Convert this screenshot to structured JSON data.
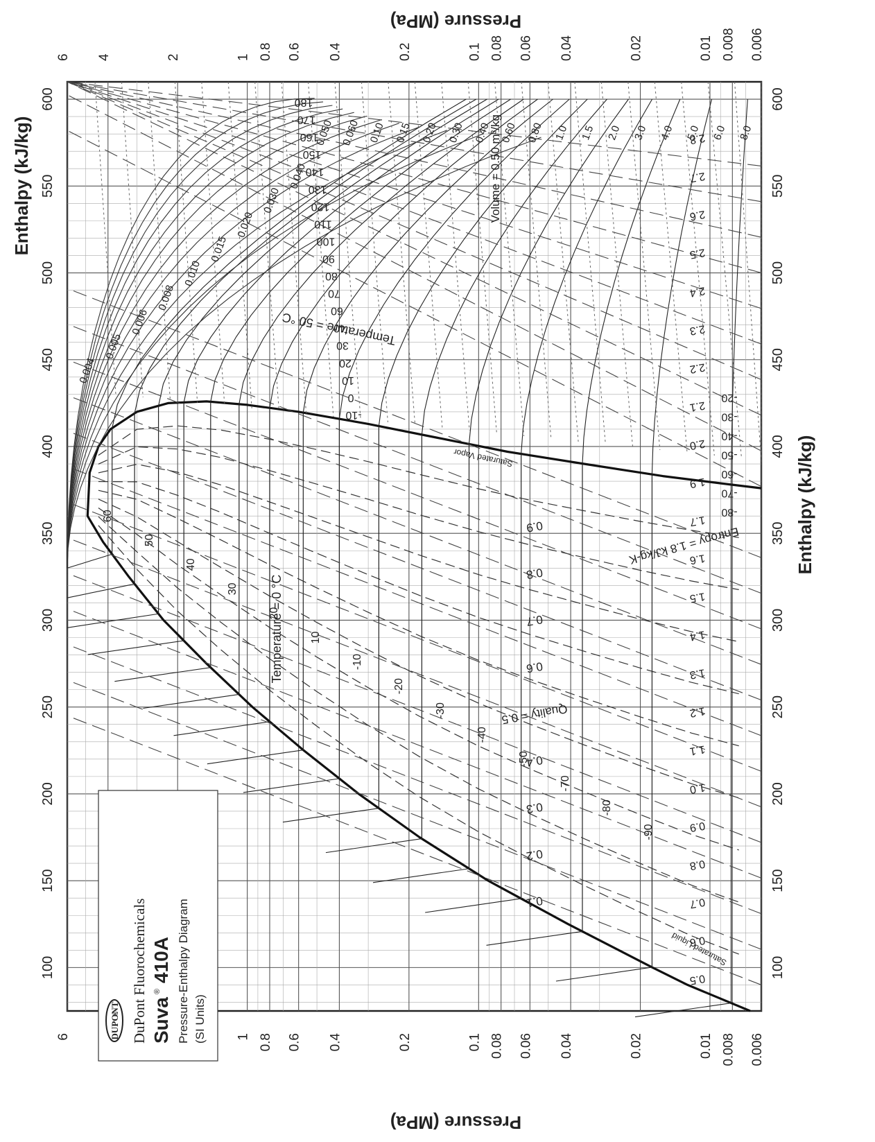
{
  "chart_data": {
    "type": "line",
    "title": "Pressure-Enthalpy Diagram",
    "subtitle": "(SI Units)",
    "xlabel": "Enthalpy (kJ/kg)",
    "ylabel": "Pressure (MPa)",
    "xlim": [
      75,
      610
    ],
    "ylim": [
      0.006,
      6
    ],
    "y_scale": "log",
    "orientation": "rotated-90-clockwise",
    "grid": true,
    "x_ticks": [
      100,
      150,
      200,
      250,
      300,
      350,
      400,
      450,
      500,
      550,
      600
    ],
    "y_ticks": [
      {
        "value": 6,
        "label": "6"
      },
      {
        "value": 4,
        "label": "4"
      },
      {
        "value": 2,
        "label": "2"
      },
      {
        "value": 1,
        "label": "1"
      },
      {
        "value": 0.8,
        "label": "0.8"
      },
      {
        "value": 0.6,
        "label": "0.6"
      },
      {
        "value": 0.4,
        "label": "0.4"
      },
      {
        "value": 0.2,
        "label": "0.2"
      },
      {
        "value": 0.1,
        "label": "0.1"
      },
      {
        "value": 0.08,
        "label": "0.08"
      },
      {
        "value": 0.06,
        "label": "0.06"
      },
      {
        "value": 0.04,
        "label": "0.04"
      },
      {
        "value": 0.02,
        "label": "0.02"
      },
      {
        "value": 0.01,
        "label": "0.01"
      },
      {
        "value": 0.008,
        "label": "0.008"
      },
      {
        "value": 0.006,
        "label": "0.006"
      }
    ],
    "legend": {
      "brand_logo": "DUPONT",
      "company": "DuPont Fluorochemicals",
      "product": "Suva",
      "product_code": "410A",
      "registered": "®",
      "diagram_name": "Pressure-Enthalpy Diagram",
      "units": "(SI Units)",
      "placement": "bottom-left"
    },
    "saturation_dome": {
      "liquid_label": "Saturated Liquid",
      "vapor_label": "Saturated Vapor",
      "critical_point": {
        "h": 360,
        "p": 4.9
      },
      "liquid": [
        {
          "h": 75,
          "p": 0.0067
        },
        {
          "h": 90,
          "p": 0.0125
        },
        {
          "h": 100,
          "p": 0.0177
        },
        {
          "h": 125,
          "p": 0.041
        },
        {
          "h": 150,
          "p": 0.091
        },
        {
          "h": 175,
          "p": 0.18
        },
        {
          "h": 200,
          "p": 0.33
        },
        {
          "h": 225,
          "p": 0.57
        },
        {
          "h": 250,
          "p": 0.95
        },
        {
          "h": 275,
          "p": 1.5
        },
        {
          "h": 300,
          "p": 2.3
        },
        {
          "h": 325,
          "p": 3.25
        },
        {
          "h": 345,
          "p": 4.2
        },
        {
          "h": 360,
          "p": 4.9
        }
      ],
      "vapor": [
        {
          "h": 360,
          "p": 4.9
        },
        {
          "h": 385,
          "p": 4.8
        },
        {
          "h": 400,
          "p": 4.4
        },
        {
          "h": 410,
          "p": 3.9
        },
        {
          "h": 420,
          "p": 3.0
        },
        {
          "h": 425,
          "p": 2.2
        },
        {
          "h": 426,
          "p": 1.5
        },
        {
          "h": 424,
          "p": 1.0
        },
        {
          "h": 420,
          "p": 0.6
        },
        {
          "h": 413,
          "p": 0.3
        },
        {
          "h": 405,
          "p": 0.15
        },
        {
          "h": 397,
          "p": 0.075
        },
        {
          "h": 390,
          "p": 0.035
        },
        {
          "h": 383,
          "p": 0.016
        },
        {
          "h": 378,
          "p": 0.008
        },
        {
          "h": 376,
          "p": 0.006
        }
      ]
    },
    "isotherms_label": "Temperature = 0 °C",
    "isotherms_superheat_label": "Temperature = 50 °C",
    "isotherms_unit_left": "Temperature = 0",
    "isotherms_unit_right": "°C",
    "isotherms": [
      -90,
      -80,
      -70,
      -60,
      -50,
      -40,
      -30,
      -20,
      -10,
      0,
      10,
      20,
      30,
      40,
      50,
      60,
      70,
      80,
      90,
      100,
      110,
      120,
      130,
      140,
      150,
      160,
      170,
      180
    ],
    "isotherm_sat_pressure": {
      "-90": 0.0081,
      "-80": 0.0178,
      "-70": 0.0356,
      "-60": 0.0655,
      "-50": 0.11,
      "-40": 0.176,
      "-30": 0.27,
      "-20": 0.4,
      "-10": 0.573,
      "0": 0.8,
      "10": 1.085,
      "20": 1.44,
      "30": 1.88,
      "40": 2.42,
      "50": 3.07,
      "60": 3.84
    },
    "isotherm_liquid_labels": [
      "60",
      "50",
      "40",
      "30",
      "20",
      "10",
      "-10",
      "-20",
      "-30",
      "-40",
      "-50",
      "-70",
      "-80",
      "-90"
    ],
    "isotherm_vapor_labels": [
      "-10",
      "0",
      "10",
      "20",
      "30",
      "40",
      "60",
      "70",
      "80",
      "90",
      "100",
      "110",
      "120",
      "130",
      "140",
      "150",
      "160",
      "170",
      "180"
    ],
    "low_isotherm_labels": [
      "-20",
      "-30",
      "-40",
      "-50",
      "-60",
      "-70",
      "-80"
    ],
    "quality_label_prefix": "Quality = ",
    "quality_lines": [
      "0.1",
      "0.2",
      "0.3",
      "0.4",
      "0.5",
      "0.6",
      "0.7",
      "0.8",
      "0.9"
    ],
    "entropy_label": "Entropy = 1.8 kJ/kg-K",
    "entropy_lines": [
      "0.5",
      "0.6",
      "0.7",
      "0.8",
      "0.9",
      "1.0",
      "1.1",
      "1.2",
      "1.3",
      "1.4",
      "1.5",
      "1.6",
      "1.7",
      "1.9",
      "2.0",
      "2.1",
      "2.2",
      "2.3",
      "2.4",
      "2.5",
      "2.6",
      "2.7",
      "2.8"
    ],
    "volume_label": "Volume = 0.50 m³/kg",
    "volume_lines": [
      "0.004",
      "0.005",
      "0.006",
      "0.008",
      "0.010",
      "0.015",
      "0.020",
      "0.030",
      "0.040",
      "0.050",
      "0.060",
      "0.10",
      "0.15",
      "0.20",
      "0.30",
      "0.40",
      "0.60",
      "0.80",
      "1.0",
      "1.5",
      "2.0",
      "3.0",
      "4.0",
      "5.0",
      "6.0",
      "8.0"
    ]
  }
}
